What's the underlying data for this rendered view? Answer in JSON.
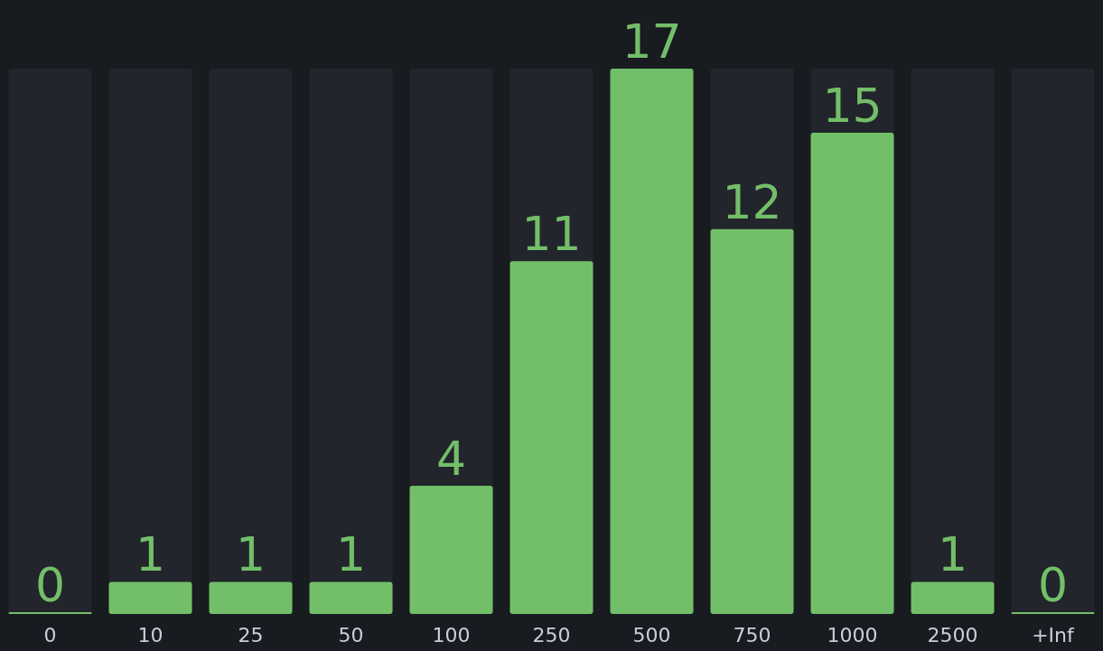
{
  "chart_data": {
    "type": "bar",
    "categories": [
      "0",
      "10",
      "25",
      "50",
      "100",
      "250",
      "500",
      "750",
      "1000",
      "2500",
      "+Inf"
    ],
    "values": [
      0,
      1,
      1,
      1,
      4,
      11,
      17,
      12,
      15,
      1,
      0
    ],
    "color": "#73bf69",
    "data_labels": true
  }
}
